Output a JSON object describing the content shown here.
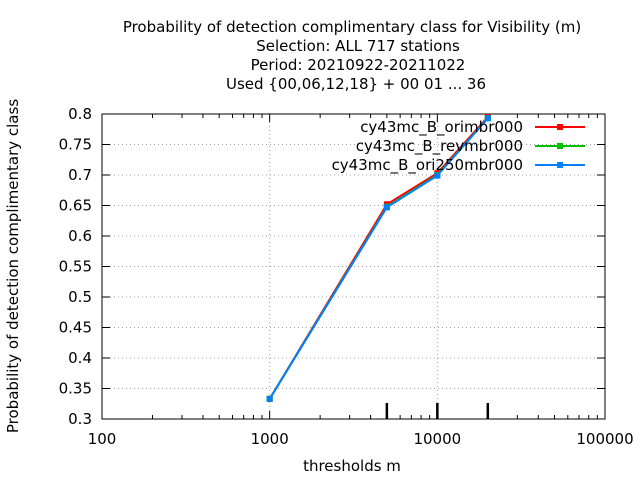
{
  "chart_data": {
    "type": "line",
    "title_lines": [
      "Probability of detection complimentary class  for Visibility (m)",
      "Selection: ALL    717 stations",
      "Period: 20210922-20211022",
      "Used {00,06,12,18} + 00 01 ... 36"
    ],
    "xlabel": "thresholds m",
    "ylabel": "Probability of detection complimentary class",
    "xscale": "log",
    "xlim": [
      100,
      100000
    ],
    "ylim": [
      0.3,
      0.8
    ],
    "xticks": [
      {
        "value": 100,
        "label": "100"
      },
      {
        "value": 1000,
        "label": "1000"
      },
      {
        "value": 10000,
        "label": "10000"
      },
      {
        "value": 100000,
        "label": "100000"
      }
    ],
    "yticks": [
      {
        "value": 0.3,
        "label": "0.3"
      },
      {
        "value": 0.35,
        "label": "0.35"
      },
      {
        "value": 0.4,
        "label": "0.4"
      },
      {
        "value": 0.45,
        "label": "0.45"
      },
      {
        "value": 0.5,
        "label": "0.5"
      },
      {
        "value": 0.55,
        "label": "0.55"
      },
      {
        "value": 0.6,
        "label": "0.6"
      },
      {
        "value": 0.65,
        "label": "0.65"
      },
      {
        "value": 0.7,
        "label": "0.7"
      },
      {
        "value": 0.75,
        "label": "0.75"
      },
      {
        "value": 0.8,
        "label": "0.8"
      }
    ],
    "grid": true,
    "legend_position": "top-right",
    "sample_marks_x": [
      5000,
      10000,
      20000
    ],
    "x": [
      1000,
      5000,
      10000,
      20000
    ],
    "series": [
      {
        "name": "cy43mc_B_orimbr000",
        "color": "#ff0000",
        "values": [
          0.333,
          0.652,
          0.703,
          0.795
        ]
      },
      {
        "name": "cy43mc_B_revmbr000",
        "color": "#00c000",
        "values": [
          0.333,
          0.648,
          0.7,
          0.793
        ]
      },
      {
        "name": "cy43mc_B_ori250mbr000",
        "color": "#0080ff",
        "values": [
          0.333,
          0.647,
          0.699,
          0.793
        ]
      }
    ]
  }
}
